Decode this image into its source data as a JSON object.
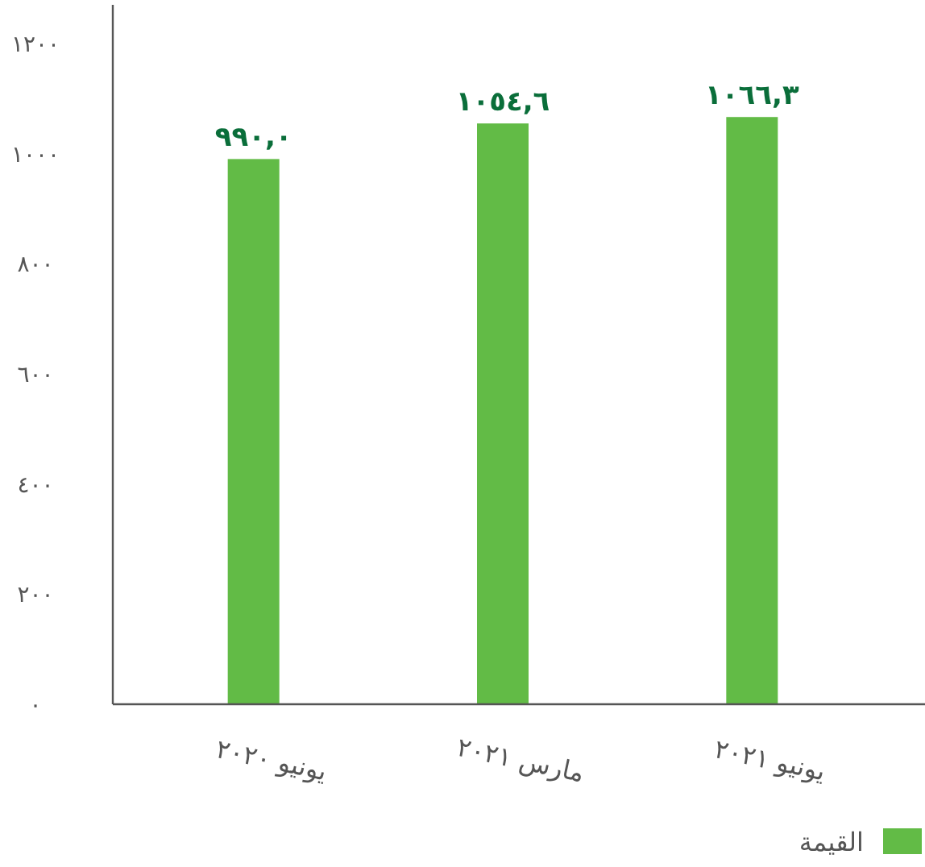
{
  "chart_data": {
    "type": "bar",
    "categories": [
      "يونيو ٢٠٢٠",
      "مارس ٢٠٢١",
      "يونيو ٢٠٢١"
    ],
    "series": [
      {
        "name": "القيمة",
        "color": "#62bb46",
        "values": [
          990.0,
          1054.6,
          1066.3
        ],
        "value_labels": [
          "٩٩٠,٠",
          "١٠٥٤,٦",
          "١٠٦٦,٣"
        ]
      }
    ],
    "ylim": [
      0,
      1270
    ],
    "yticks": [
      {
        "value": 0,
        "label": "٠"
      },
      {
        "value": 200,
        "label": "٢٠٠"
      },
      {
        "value": 400,
        "label": "٤٠٠"
      },
      {
        "value": 600,
        "label": "٦٠٠"
      },
      {
        "value": 800,
        "label": "٨٠٠"
      },
      {
        "value": 1000,
        "label": "١٠٠٠"
      },
      {
        "value": 1200,
        "label": "١٢٠٠"
      }
    ],
    "grid": false,
    "legend": "bottom right"
  }
}
